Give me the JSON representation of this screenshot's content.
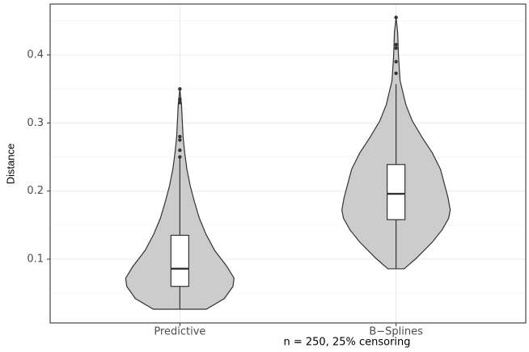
{
  "chart_data": {
    "type": "violin",
    "xlabel": "n = 250, 25% censoring",
    "ylabel": "Distance",
    "categories": [
      "Predictive",
      "B−Splines"
    ],
    "ylim": [
      0.0063,
      0.4747
    ],
    "yticks": [
      0.1,
      0.2,
      0.3,
      0.4
    ],
    "y_minor_ticks": [
      0.05,
      0.15,
      0.25,
      0.35,
      0.45
    ],
    "grid": true,
    "fill": "#cccccc",
    "groups": [
      {
        "density": {
          "y": [
            0.0265,
            0.042,
            0.06,
            0.072,
            0.089,
            0.113,
            0.137,
            0.16,
            0.184,
            0.208,
            0.232,
            0.256,
            0.279,
            0.303,
            0.327,
            0.35
          ],
          "width": [
            0.49,
            0.82,
            0.98,
            1.0,
            0.87,
            0.64,
            0.48,
            0.36,
            0.27,
            0.19,
            0.13,
            0.09,
            0.06,
            0.045,
            0.03,
            0.0
          ]
        },
        "box": {
          "whisker_low": 0.0265,
          "q1": 0.06,
          "median": 0.086,
          "q3": 0.135,
          "whisker_high": 0.249
        },
        "outliers": [
          0.25,
          0.26,
          0.275,
          0.28,
          0.33,
          0.335,
          0.35
        ]
      },
      {
        "density": {
          "y": [
            0.0858,
            0.101,
            0.125,
            0.143,
            0.16,
            0.172,
            0.19,
            0.208,
            0.232,
            0.256,
            0.279,
            0.303,
            0.327,
            0.362,
            0.398,
            0.433,
            0.455
          ],
          "width": [
            0.15,
            0.37,
            0.67,
            0.85,
            0.97,
            1.0,
            0.96,
            0.9,
            0.82,
            0.67,
            0.48,
            0.3,
            0.18,
            0.075,
            0.045,
            0.03,
            0.0
          ]
        },
        "box": {
          "whisker_low": 0.0858,
          "q1": 0.158,
          "median": 0.196,
          "q3": 0.239,
          "whisker_high": 0.357
        },
        "outliers": [
          0.373,
          0.39,
          0.41,
          0.415,
          0.455
        ]
      }
    ]
  }
}
